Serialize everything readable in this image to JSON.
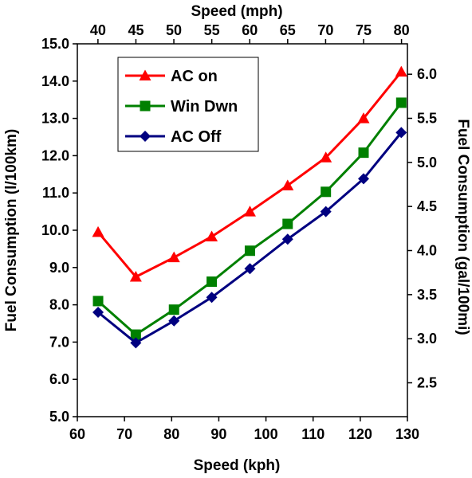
{
  "chart_data": {
    "type": "line",
    "xlabel": "Speed (kph)",
    "x2label": "Speed (mph)",
    "ylabel": "Fuel Consumption (l/100km)",
    "y2label": "Fuel Consumption (gal/100mi)",
    "xlim": [
      60,
      130
    ],
    "ylim": [
      5.0,
      15.0
    ],
    "y2lim": [
      2.116,
      6.345
    ],
    "x_ticks": [
      "60",
      "70",
      "80",
      "90",
      "100",
      "110",
      "120",
      "130"
    ],
    "x2_ticks": [
      "40",
      "45",
      "50",
      "55",
      "60",
      "65",
      "70",
      "75",
      "80"
    ],
    "y_ticks": [
      "5.0",
      "6.0",
      "7.0",
      "8.0",
      "9.0",
      "10.0",
      "11.0",
      "12.0",
      "13.0",
      "14.0",
      "15.0"
    ],
    "y2_ticks": [
      "2.5",
      "3.0",
      "3.5",
      "4.0",
      "4.5",
      "5.0",
      "5.5",
      "6.0"
    ],
    "x": [
      64.4,
      72.4,
      80.5,
      88.5,
      96.6,
      104.6,
      112.7,
      120.7,
      128.7
    ],
    "series": [
      {
        "name": "AC on",
        "color": "#ff0000",
        "marker": "triangle",
        "values": [
          9.95,
          8.75,
          9.27,
          9.83,
          10.5,
          11.2,
          11.95,
          13.0,
          14.25
        ]
      },
      {
        "name": "Win Dwn",
        "color": "#008000",
        "marker": "square",
        "values": [
          8.1,
          7.2,
          7.87,
          8.62,
          9.45,
          10.17,
          11.03,
          12.08,
          13.42
        ]
      },
      {
        "name": "AC Off",
        "color": "#000080",
        "marker": "diamond",
        "values": [
          7.8,
          6.98,
          7.57,
          8.2,
          8.97,
          9.76,
          10.5,
          11.38,
          12.62
        ]
      }
    ],
    "legend_position": "top-left",
    "grid": false
  }
}
